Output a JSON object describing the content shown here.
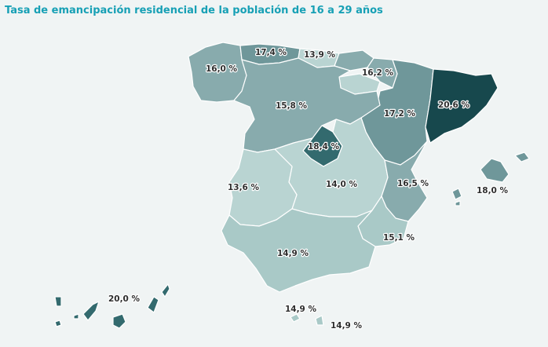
{
  "title": "Tasa de emancipación residencial de la población de 16 a 29 años",
  "colors": {
    "very_light": "#b9d4d2",
    "light": "#a9c9c7",
    "mid": "#88abad",
    "mid_dark": "#6f979a",
    "dark": "#336a6e",
    "darkest": "#17484d",
    "title": "#17a0b5"
  },
  "regions": [
    {
      "id": "galicia",
      "label": "16,0 %",
      "value": 16.0
    },
    {
      "id": "asturias",
      "label": "17,4 %",
      "value": 17.4
    },
    {
      "id": "cantabria",
      "label": "13,9 %",
      "value": 13.9
    },
    {
      "id": "pais-vasco",
      "label": "16,2 %",
      "value": 16.2
    },
    {
      "id": "navarra-aragon",
      "label": "17,2 %",
      "value": 17.2
    },
    {
      "id": "cataluna",
      "label": "20,6 %",
      "value": 20.6
    },
    {
      "id": "castilla-leon",
      "label": "15,8 %",
      "value": 15.8
    },
    {
      "id": "madrid",
      "label": "18,4 %",
      "value": 18.4
    },
    {
      "id": "extremadura",
      "label": "13,6 %",
      "value": 13.6
    },
    {
      "id": "castilla-la-mancha",
      "label": "14,0 %",
      "value": 14.0
    },
    {
      "id": "comunidad-valenciana",
      "label": "16,5 %",
      "value": 16.5
    },
    {
      "id": "murcia",
      "label": "15,1 %",
      "value": 15.1
    },
    {
      "id": "andalucia",
      "label": "14,9 %",
      "value": 14.9
    },
    {
      "id": "baleares",
      "label": "18,0 %",
      "value": 18.0
    },
    {
      "id": "canarias",
      "label": "20,0 %",
      "value": 20.0
    },
    {
      "id": "ceuta",
      "label": "14,9 %",
      "value": 14.9
    },
    {
      "id": "melilla",
      "label": "14,9 %",
      "value": 14.9
    }
  ]
}
